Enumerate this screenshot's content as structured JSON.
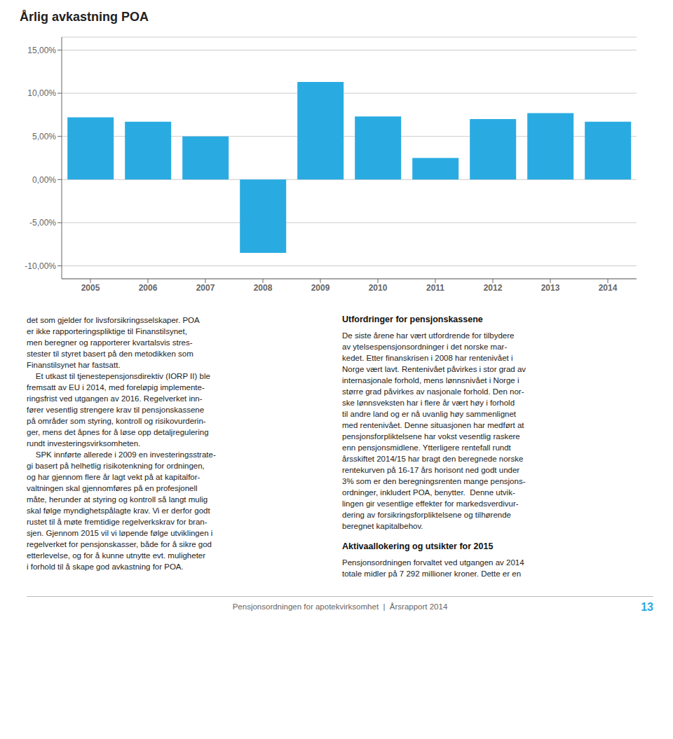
{
  "chart_data": {
    "type": "bar",
    "title": "Årlig avkastning POA",
    "categories": [
      "2005",
      "2006",
      "2007",
      "2008",
      "2009",
      "2010",
      "2011",
      "2012",
      "2013",
      "2014"
    ],
    "values": [
      7.2,
      6.7,
      5.0,
      -8.5,
      11.3,
      7.3,
      2.5,
      7.0,
      7.7,
      6.7
    ],
    "color": "#29abe2",
    "ylim": [
      -11.5,
      16.5
    ],
    "yticks": [
      {
        "value": -10.0,
        "label": "-10,00%"
      },
      {
        "value": -5.0,
        "label": "-5,00%"
      },
      {
        "value": 0.0,
        "label": "0,00%"
      },
      {
        "value": 5.0,
        "label": "5,00%"
      },
      {
        "value": 10.0,
        "label": "10,00%"
      },
      {
        "value": 15.0,
        "label": "15,00%"
      }
    ],
    "grid": true,
    "annotations": [
      "det som gjelder for livsforsikringsselskaper. POA\ner ikke rapporteringspliktige til Finanstilsynet,\nmen beregner og rapporterer kvartalsvis stres-\nstester til styret basert på den metodikken som\nFinanstilsynet har fastsatt.\n    Et utkast til tjenestepensjonsdirektiv (IORP II) ble\nfremsatt av EU i 2014, med foreløpig implemente-\nringsfrist ved utgangen av 2016. Regelverket inn-\nfører vesentlig strengere krav til pensjonskassene\npå områder som styring, kontroll og risikovurderin-\nger, mens det åpnes for å løse opp detaljregulering\nrundt investeringsvirksomheten.\n    SPK innførte allerede i 2009 en investeringsstrate-\ngi basert på helhetlig risikotenkning for ordningen,\nog har gjennom flere år lagt vekt på at kapitalfor-\nvaltningen skal gjennomføres på en profesjonell\nmåte, herunder at styring og kontroll så langt mulig\nskal følge myndighetspålagte krav. Vi er derfor godt\nrustet til å møte fremtidige regelverkskrav for bran-\nsjen. Gjennom 2015 vil vi løpende følge utviklingen i\nregelverket for pensjonskasser, både for å sikre god\netterlevelse, og for å kunne utnytte evt. muligheter\ni forhold til å skape god avkastning for POA.",
      "Utfordringer for pensjonskassene",
      "De siste årene har vært utfordrende for tilbydere\nav ytelsespensjonsordninger i det norske mar-\nkedet. Etter finanskrisen i 2008 har rentenivået i\nNorge vært lavt. Rentenivået påvirkes i stor grad av\ninternasjonale forhold, mens lønnsnivået i Norge i\nstørre grad påvirkes av nasjonale forhold. Den nor-\nske lønnsveksten har i flere år vært høy i forhold\ntil andre land og er nå uvanlig høy sammenlignet\nmed rentenivået. Denne situasjonen har medført at\npensjonsforpliktelsene har vokst vesentlig raskere\nenn pensjonsmidlene. Ytterligere rentefall rundt\nårsskiftet 2014/15 har bragt den beregnede norske\nrentekurven på 16-17 års horisont ned godt under\n3% som er den beregningsrenten mange pensjons-\nordninger, inkludert POA, benytter.  Denne utvik-\nlingen gir vesentlige effekter for markedsverdivur-\ndering av forsikringsforpliktelsene og tilhørende\nberegnet kapitalbehov.",
      "Aktivaallokering og utsikter for 2015",
      "Pensjonsordningen forvaltet ved utgangen av 2014\ntotale midler på 7 292 millioner kroner. Dette er en",
      "Pensjonsordningen for apotekvirksomhet  |  Årsrapport 2014",
      "13"
    ]
  }
}
